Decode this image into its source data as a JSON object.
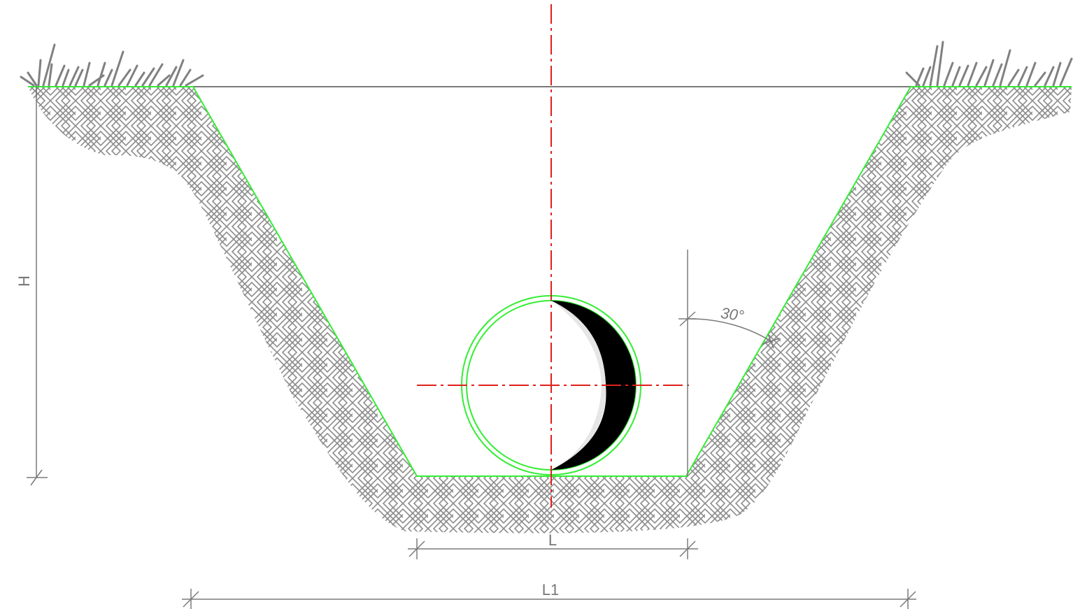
{
  "labels": {
    "height": "H",
    "bottom_width": "L",
    "top_width": "L1",
    "slope_angle": "30°"
  },
  "colors": {
    "ground_hatch": "#8c8c8c",
    "trench_edge": "#33ee33",
    "centerline": "#e0201c",
    "dimension": "#7a7a7a",
    "pipe_fill": "#000000",
    "background": "#ffffff"
  },
  "icons": {
    "grass": "grass-tuft-icon"
  }
}
